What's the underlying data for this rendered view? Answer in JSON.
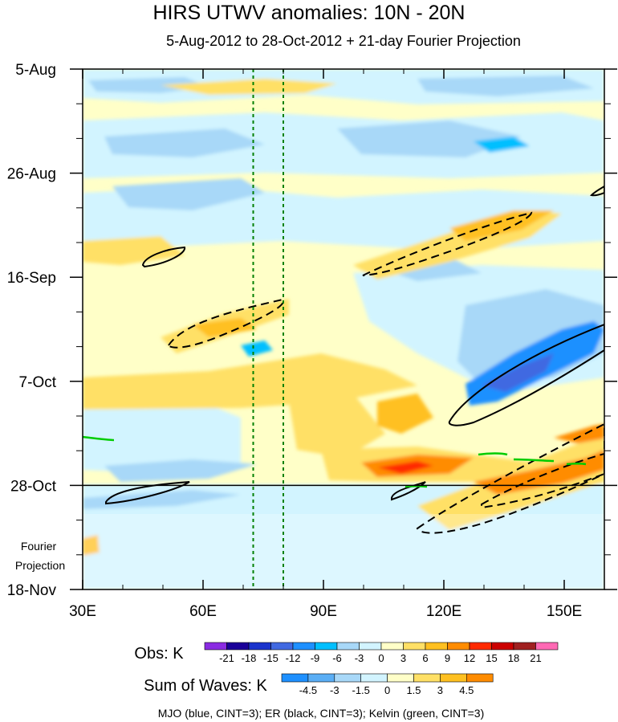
{
  "chart_data": {
    "type": "heatmap",
    "title": "HIRS UTWV anomalies: 10N - 20N",
    "subtitle": "5-Aug-2012 to 28-Oct-2012 + 21-day Fourier Projection",
    "x_axis": {
      "min": 30,
      "max": 160,
      "ticks": [
        30,
        60,
        90,
        120,
        150
      ],
      "tick_labels": [
        "30E",
        "60E",
        "90E",
        "120E",
        "150E"
      ]
    },
    "y_axis": {
      "ticks": [
        "5-Aug",
        "26-Aug",
        "16-Sep",
        "7-Oct",
        "28-Oct",
        "18-Nov"
      ],
      "days_from_start": [
        0,
        21,
        42,
        63,
        84,
        105
      ],
      "total_days": 105
    },
    "observation_end": "28-Oct",
    "projection_label_line1": "Fourier",
    "projection_label_line2": "Projection",
    "reference_longitudes": [
      72.5,
      80
    ],
    "obs_colorbar": {
      "label": "Obs: K",
      "levels": [
        "-21",
        "-18",
        "-15",
        "-12",
        "-9",
        "-6",
        "-3",
        "0",
        "3",
        "6",
        "9",
        "12",
        "15",
        "18",
        "21"
      ],
      "colors": [
        "#8a2be2",
        "#1a0099",
        "#1a33cc",
        "#4169e1",
        "#1e90ff",
        "#00bfff",
        "#a8d8f8",
        "#d2f4ff",
        "#ffffc8",
        "#ffe066",
        "#ffc020",
        "#ff8c00",
        "#ff2a00",
        "#cc0000",
        "#a02020",
        "#ff69b4"
      ]
    },
    "waves_colorbar": {
      "label": "Sum of Waves: K",
      "levels": [
        "-4.5",
        "-3",
        "-1.5",
        "0",
        "1.5",
        "3",
        "4.5"
      ],
      "colors": [
        "#1e90ff",
        "#5aaef5",
        "#a8d8f8",
        "#d2f4ff",
        "#ffffc8",
        "#ffe066",
        "#ffc020",
        "#ff8c00"
      ]
    },
    "legend_note": "MJO (blue, CINT=3); ER (black, CINT=3); Kelvin (green, CINT=3)"
  }
}
